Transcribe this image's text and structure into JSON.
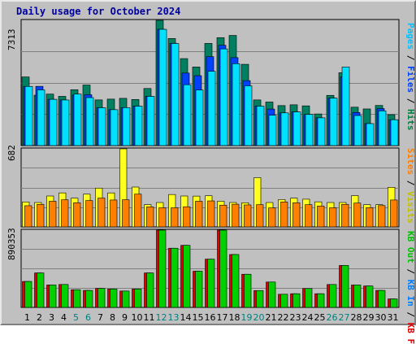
{
  "chart_data": {
    "type": "bar",
    "title": "Daily usage for October 2024",
    "title_color": "#0000a0",
    "categories": [
      "1",
      "2",
      "3",
      "4",
      "5",
      "6",
      "7",
      "8",
      "9",
      "10",
      "11",
      "12",
      "13",
      "14",
      "15",
      "16",
      "17",
      "18",
      "19",
      "20",
      "21",
      "22",
      "23",
      "24",
      "25",
      "26",
      "27",
      "28",
      "29",
      "30",
      "31"
    ],
    "weekend_days": [
      "5",
      "6",
      "12",
      "13",
      "19",
      "20",
      "26",
      "27"
    ],
    "weekday_color": "#000000",
    "weekend_color": "#008080",
    "grid": true,
    "panels": [
      {
        "max_label": "7313",
        "max_value": 7313,
        "right_labels": [
          {
            "text": "Pages",
            "color": "#00c0ff"
          },
          {
            "text": "Files",
            "color": "#0040ff"
          },
          {
            "text": "Hits",
            "color": "#008040"
          }
        ],
        "series": [
          {
            "name": "Hits",
            "color": "#008060",
            "values": [
              4007,
              2941,
              3006,
              2874,
              3263,
              3536,
              2666,
              2713,
              2758,
              2693,
              3335,
              7313,
              6253,
              5078,
              4588,
              5965,
              6303,
              6432,
              4745,
              2666,
              2544,
              2334,
              2380,
              2319,
              1847,
              2933,
              4253,
              2242,
              2139,
              2344,
              1805
            ]
          },
          {
            "name": "Files",
            "color": "#0040ff",
            "values": [
              3454,
              3459,
              2701,
              2662,
              2947,
              2967,
              2209,
              2096,
              2215,
              2303,
              2874,
              6789,
              5973,
              4235,
              4081,
              5191,
              5856,
              5135,
              3793,
              2302,
              2133,
              1909,
              1968,
              1817,
              1620,
              2774,
              4014,
              1932,
              1283,
              2160,
              1510
            ]
          },
          {
            "name": "Pages",
            "color": "#00e0ff",
            "values": [
              3454,
              3251,
              2701,
              2662,
              3007,
              2801,
              2209,
              2096,
              2215,
              2303,
              2874,
              6789,
              5962,
              3555,
              3245,
              4339,
              5644,
              4781,
              3489,
              2303,
              1771,
              1909,
              1968,
              1817,
              1620,
              2774,
              4591,
              1755,
              1283,
              2028,
              1510
            ]
          }
        ]
      },
      {
        "max_label": "682",
        "max_value": 682,
        "right_labels": [
          {
            "text": "Visits",
            "color": "#c0c000"
          },
          {
            "text": "Sites",
            "color": "#ff8000"
          }
        ],
        "series": [
          {
            "name": "Visits",
            "color": "#ffff20",
            "values": [
              218,
              213,
              270,
              297,
              251,
              286,
              339,
              297,
              682,
              348,
              194,
              213,
              283,
              270,
              269,
              272,
              224,
              213,
              211,
              430,
              213,
              239,
              251,
              242,
              219,
              213,
              213,
              273,
              194,
              194,
              346
            ]
          },
          {
            "name": "Sites",
            "color": "#ff8000",
            "values": [
              185,
              197,
              224,
              237,
              211,
              230,
              252,
              235,
              237,
              286,
              175,
              167,
              167,
              176,
              224,
              227,
              190,
              198,
              192,
              194,
              166,
              218,
              211,
              194,
              182,
              167,
              197,
              208,
              168,
              186,
              235
            ]
          }
        ]
      },
      {
        "max_label": "890353",
        "max_value": 890353,
        "right_labels": [
          {
            "text": "KB F",
            "color": "#e00000"
          },
          {
            "text": "KB In",
            "color": "#0080ff"
          },
          {
            "text": "KB Out",
            "color": "#00c000"
          }
        ],
        "series": [
          {
            "name": "KB F",
            "color": "#e00000",
            "values": [
              299253,
              397358,
              258651,
              264186,
              204016,
              196003,
              218891,
              211584,
              188553,
              211584,
              397358,
              890353,
              682021,
              715293,
              417283,
              556201,
              890353,
              609567,
              382112,
              194006,
              292521,
              151624,
              157641,
              217592,
              157641,
              264186,
              483589,
              258651,
              247108,
              196003,
              98003
            ]
          },
          {
            "name": "KB Out",
            "color": "#00d000",
            "values": [
              299253,
              397358,
              258651,
              264186,
              204016,
              196003,
              218891,
              211584,
              188553,
              211584,
              397358,
              890353,
              682021,
              715293,
              417283,
              556201,
              890353,
              609567,
              382112,
              194006,
              292521,
              151624,
              157641,
              217592,
              157641,
              264186,
              483589,
              258651,
              247108,
              196003,
              98003
            ]
          }
        ]
      }
    ]
  }
}
